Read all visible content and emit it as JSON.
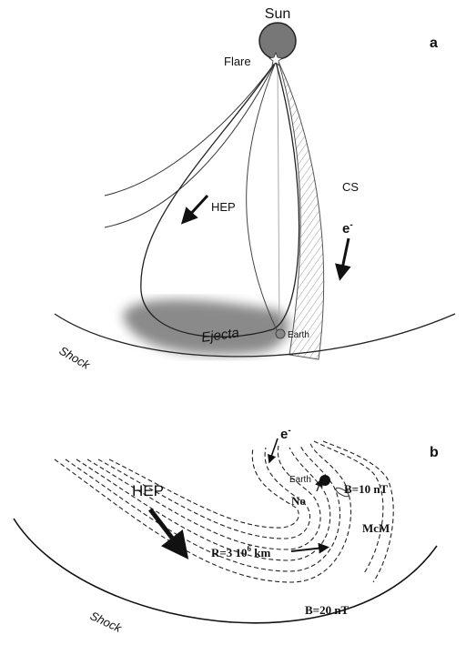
{
  "panel_a": {
    "label": "a",
    "sun": "Sun",
    "flare": "Flare",
    "hep": "HEP",
    "cs": "CS",
    "electron": {
      "text": "e",
      "sup": "-"
    },
    "ejecta": "Ejecta",
    "earth": "Earth",
    "shock": "Shock"
  },
  "panel_b": {
    "label": "b",
    "electron": {
      "text": "e",
      "sup": "-"
    },
    "hep": "HEP",
    "earth": "Earth",
    "b_inner": "B=10 nT",
    "no": "No",
    "mcm": "McM",
    "radius": {
      "text": "R=3 10",
      "sup": "6",
      "unit": " km"
    },
    "b_outer": "B=20 nT",
    "shock": "Shock"
  }
}
